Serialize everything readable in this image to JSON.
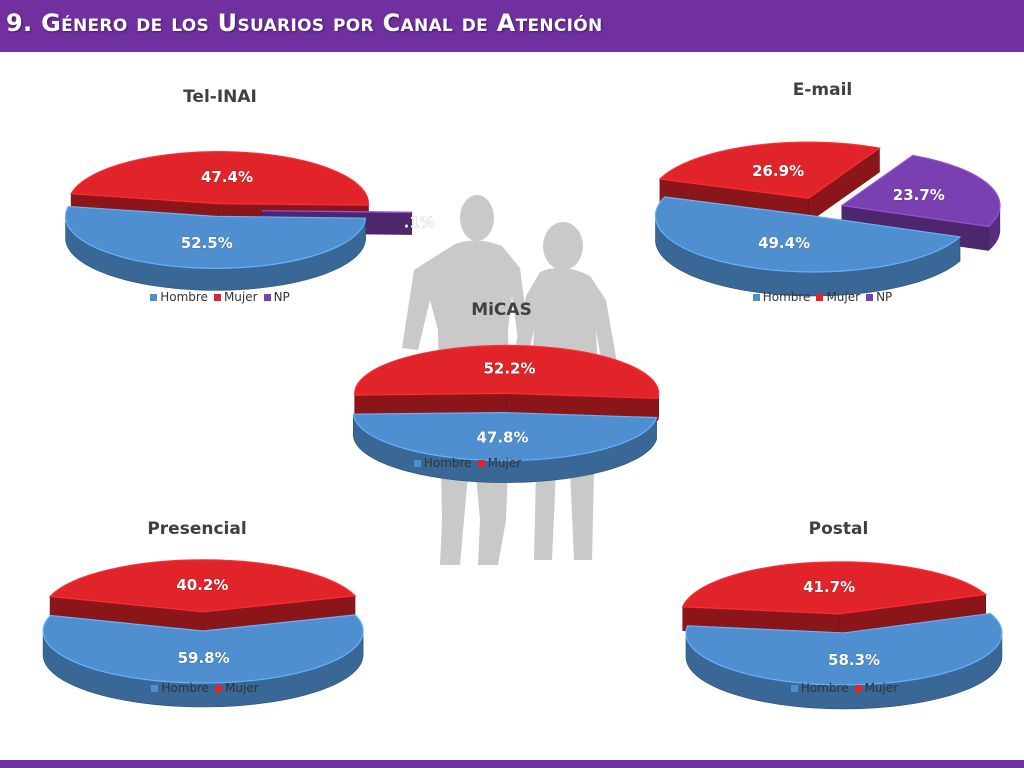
{
  "header": {
    "title": "9. Género de los Usuarios por Canal de Atención"
  },
  "colors": {
    "hombre": "#4f8fd0",
    "mujer": "#e0242a",
    "np": "#7a3fb0",
    "header": "#7130a0",
    "silhouette": "#c8c8c8"
  },
  "chart_data": [
    {
      "type": "pie",
      "title": "Tel-INAI",
      "categories": [
        "Hombre",
        "Mujer",
        "NP"
      ],
      "values": [
        52.5,
        47.4,
        0.1
      ],
      "labels": [
        "52.5%",
        "47.4%",
        ".1%"
      ]
    },
    {
      "type": "pie",
      "title": "E-mail",
      "categories": [
        "Hombre",
        "Mujer",
        "NP"
      ],
      "values": [
        49.4,
        26.9,
        23.7
      ],
      "labels": [
        "49.4%",
        "26.9%",
        "23.7%"
      ]
    },
    {
      "type": "pie",
      "title": "MiCAS",
      "categories": [
        "Hombre",
        "Mujer"
      ],
      "values": [
        47.8,
        52.2
      ],
      "labels": [
        "47.8%",
        "52.2%"
      ]
    },
    {
      "type": "pie",
      "title": "Presencial",
      "categories": [
        "Hombre",
        "Mujer"
      ],
      "values": [
        59.8,
        40.2
      ],
      "labels": [
        "59.8%",
        "40.2%"
      ]
    },
    {
      "type": "pie",
      "title": "Postal",
      "categories": [
        "Hombre",
        "Mujer"
      ],
      "values": [
        58.3,
        41.7
      ],
      "labels": [
        "58.3%",
        "41.7%"
      ]
    }
  ]
}
